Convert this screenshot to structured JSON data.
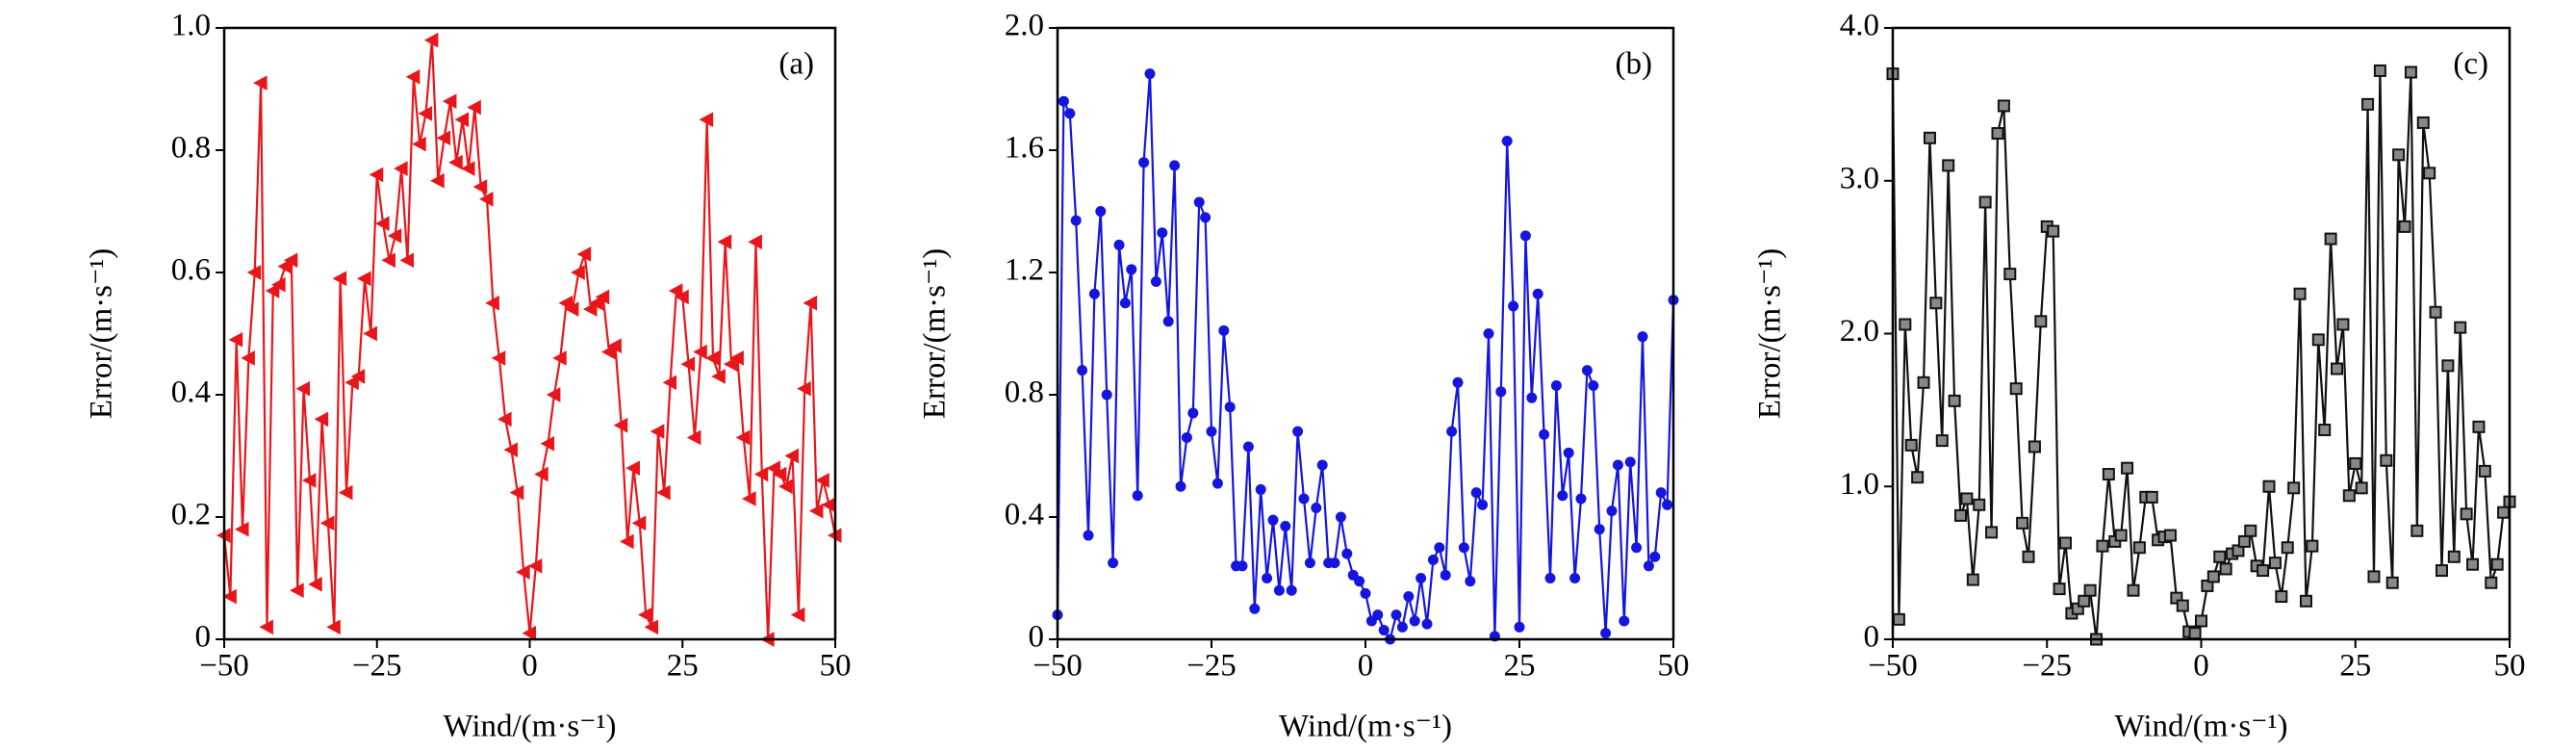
{
  "chart_data": [
    {
      "type": "line",
      "annotation": "(a)",
      "x_label": "Wind/(m·s⁻¹)",
      "y_label": "Error/(m·s⁻¹)",
      "color": "#e8161b",
      "marker": "triangle-left",
      "x": [
        -50,
        -49,
        -48,
        -47,
        -46,
        -45,
        -44,
        -43,
        -42,
        -41,
        -40,
        -39,
        -38,
        -37,
        -36,
        -35,
        -34,
        -33,
        -32,
        -31,
        -30,
        -29,
        -28,
        -27,
        -26,
        -25,
        -24,
        -23,
        -22,
        -21,
        -20,
        -19,
        -18,
        -17,
        -16,
        -15,
        -14,
        -13,
        -12,
        -11,
        -10,
        -9,
        -8,
        -7,
        -6,
        -5,
        -4,
        -3,
        -2,
        -1,
        0,
        1,
        2,
        3,
        4,
        5,
        6,
        7,
        8,
        9,
        10,
        11,
        12,
        13,
        14,
        15,
        16,
        17,
        18,
        19,
        20,
        21,
        22,
        23,
        24,
        25,
        26,
        27,
        28,
        29,
        30,
        31,
        32,
        33,
        34,
        35,
        36,
        37,
        38,
        39,
        40,
        41,
        42,
        43,
        44,
        45,
        46,
        47,
        48,
        49,
        50
      ],
      "values": [
        0.17,
        0.07,
        0.49,
        0.18,
        0.46,
        0.6,
        0.91,
        0.02,
        0.57,
        0.58,
        0.61,
        0.62,
        0.08,
        0.41,
        0.26,
        0.09,
        0.36,
        0.19,
        0.02,
        0.59,
        0.24,
        0.42,
        0.43,
        0.59,
        0.5,
        0.76,
        0.68,
        0.62,
        0.66,
        0.77,
        0.62,
        0.92,
        0.81,
        0.86,
        0.98,
        0.75,
        0.82,
        0.88,
        0.78,
        0.85,
        0.77,
        0.87,
        0.74,
        0.72,
        0.55,
        0.46,
        0.36,
        0.31,
        0.24,
        0.11,
        0.01,
        0.12,
        0.27,
        0.32,
        0.4,
        0.46,
        0.55,
        0.54,
        0.6,
        0.63,
        0.54,
        0.55,
        0.56,
        0.47,
        0.48,
        0.35,
        0.16,
        0.28,
        0.19,
        0.04,
        0.02,
        0.34,
        0.24,
        0.42,
        0.57,
        0.56,
        0.45,
        0.33,
        0.47,
        0.85,
        0.46,
        0.43,
        0.65,
        0.45,
        0.46,
        0.33,
        0.23,
        0.65,
        0.27,
        0.0,
        0.28,
        0.27,
        0.25,
        0.3,
        0.04,
        0.41,
        0.55,
        0.21,
        0.26,
        0.22,
        0.17
      ],
      "xlim": [
        -50,
        50
      ],
      "xticks": [
        {
          "value": -50,
          "label": "−50"
        },
        {
          "value": -25,
          "label": "−25"
        },
        0,
        25,
        50
      ],
      "ylim": [
        0,
        1
      ],
      "yticks": [
        0,
        0.2,
        0.4,
        0.6,
        0.8,
        {
          "value": 1,
          "label": "1.0"
        }
      ]
    },
    {
      "type": "line",
      "annotation": "(b)",
      "x_label": "Wind/(m·s⁻¹)",
      "y_label": "Error/(m·s⁻¹)",
      "color": "#1515e0",
      "marker": "circle",
      "x": [
        -50,
        -49,
        -48,
        -47,
        -46,
        -45,
        -44,
        -43,
        -42,
        -41,
        -40,
        -39,
        -38,
        -37,
        -36,
        -35,
        -34,
        -33,
        -32,
        -31,
        -30,
        -29,
        -28,
        -27,
        -26,
        -25,
        -24,
        -23,
        -22,
        -21,
        -20,
        -19,
        -18,
        -17,
        -16,
        -15,
        -14,
        -13,
        -12,
        -11,
        -10,
        -9,
        -8,
        -7,
        -6,
        -5,
        -4,
        -3,
        -2,
        -1,
        0,
        1,
        2,
        3,
        4,
        5,
        6,
        7,
        8,
        9,
        10,
        11,
        12,
        13,
        14,
        15,
        16,
        17,
        18,
        19,
        20,
        21,
        22,
        23,
        24,
        25,
        26,
        27,
        28,
        29,
        30,
        31,
        32,
        33,
        34,
        35,
        36,
        37,
        38,
        39,
        40,
        41,
        42,
        43,
        44,
        45,
        46,
        47,
        48,
        49,
        50
      ],
      "values": [
        0.08,
        1.76,
        1.72,
        1.37,
        0.88,
        0.34,
        1.13,
        1.4,
        0.8,
        0.25,
        1.29,
        1.1,
        1.21,
        0.47,
        1.56,
        1.85,
        1.17,
        1.33,
        1.04,
        1.55,
        0.5,
        0.66,
        0.74,
        1.43,
        1.38,
        0.68,
        0.51,
        1.01,
        0.76,
        0.24,
        0.24,
        0.63,
        0.1,
        0.49,
        0.2,
        0.39,
        0.16,
        0.37,
        0.16,
        0.68,
        0.46,
        0.25,
        0.43,
        0.57,
        0.25,
        0.25,
        0.4,
        0.28,
        0.21,
        0.19,
        0.15,
        0.06,
        0.08,
        0.03,
        0.0,
        0.08,
        0.04,
        0.14,
        0.06,
        0.2,
        0.05,
        0.26,
        0.3,
        0.21,
        0.68,
        0.84,
        0.3,
        0.19,
        0.48,
        0.44,
        1.0,
        0.01,
        0.81,
        1.63,
        1.09,
        0.04,
        1.32,
        0.79,
        1.13,
        0.67,
        0.2,
        0.83,
        0.47,
        0.61,
        0.2,
        0.46,
        0.88,
        0.83,
        0.36,
        0.02,
        0.42,
        0.57,
        0.06,
        0.58,
        0.3,
        0.99,
        0.24,
        0.27,
        0.48,
        0.44,
        1.11
      ],
      "xlim": [
        -50,
        50
      ],
      "xticks": [
        {
          "value": -50,
          "label": "−50"
        },
        {
          "value": -25,
          "label": "−25"
        },
        0,
        25,
        50
      ],
      "ylim": [
        0,
        2
      ],
      "yticks": [
        0,
        0.4,
        0.8,
        1.2,
        1.6,
        {
          "value": 2,
          "label": "2.0"
        }
      ]
    },
    {
      "type": "line",
      "annotation": "(c)",
      "x_label": "Wind/(m·s⁻¹)",
      "y_label": "Error/(m·s⁻¹)",
      "color": "#111111",
      "marker": "square",
      "x": [
        -50,
        -49,
        -48,
        -47,
        -46,
        -45,
        -44,
        -43,
        -42,
        -41,
        -40,
        -39,
        -38,
        -37,
        -36,
        -35,
        -34,
        -33,
        -32,
        -31,
        -30,
        -29,
        -28,
        -27,
        -26,
        -25,
        -24,
        -23,
        -22,
        -21,
        -20,
        -19,
        -18,
        -17,
        -16,
        -15,
        -14,
        -13,
        -12,
        -11,
        -10,
        -9,
        -8,
        -7,
        -6,
        -5,
        -4,
        -3,
        -2,
        -1,
        0,
        1,
        2,
        3,
        4,
        5,
        6,
        7,
        8,
        9,
        10,
        11,
        12,
        13,
        14,
        15,
        16,
        17,
        18,
        19,
        20,
        21,
        22,
        23,
        24,
        25,
        26,
        27,
        28,
        29,
        30,
        31,
        32,
        33,
        34,
        35,
        36,
        37,
        38,
        39,
        40,
        41,
        42,
        43,
        44,
        45,
        46,
        47,
        48,
        49,
        50
      ],
      "values": [
        3.7,
        0.13,
        2.06,
        1.27,
        1.06,
        1.68,
        3.28,
        2.2,
        1.3,
        3.1,
        1.56,
        0.81,
        0.92,
        0.39,
        0.88,
        2.86,
        0.7,
        3.31,
        3.49,
        2.39,
        1.64,
        0.76,
        0.54,
        1.26,
        2.08,
        2.7,
        2.67,
        0.33,
        0.63,
        0.17,
        0.2,
        0.25,
        0.32,
        0.0,
        0.61,
        1.08,
        0.64,
        0.68,
        1.12,
        0.32,
        0.6,
        0.93,
        0.93,
        0.65,
        0.67,
        0.68,
        0.27,
        0.22,
        0.05,
        0.04,
        0.12,
        0.35,
        0.41,
        0.54,
        0.46,
        0.56,
        0.58,
        0.64,
        0.71,
        0.48,
        0.45,
        1.0,
        0.5,
        0.28,
        0.6,
        0.99,
        2.26,
        0.25,
        0.61,
        1.96,
        1.37,
        2.62,
        1.77,
        2.06,
        0.94,
        1.15,
        0.99,
        3.5,
        0.41,
        3.72,
        1.17,
        0.37,
        3.17,
        2.7,
        3.71,
        0.71,
        3.38,
        3.05,
        2.14,
        0.45,
        1.79,
        0.54,
        2.04,
        0.82,
        0.49,
        1.39,
        1.1,
        0.37,
        0.49,
        0.83,
        0.9
      ],
      "xlim": [
        -50,
        50
      ],
      "xticks": [
        {
          "value": -50,
          "label": "−50"
        },
        {
          "value": -25,
          "label": "−25"
        },
        0,
        25,
        50
      ],
      "ylim": [
        0,
        4
      ],
      "yticks": [
        0,
        {
          "value": 1,
          "label": "1.0"
        },
        {
          "value": 2,
          "label": "2.0"
        },
        {
          "value": 3,
          "label": "3.0"
        },
        {
          "value": 4,
          "label": "4.0"
        }
      ]
    }
  ]
}
